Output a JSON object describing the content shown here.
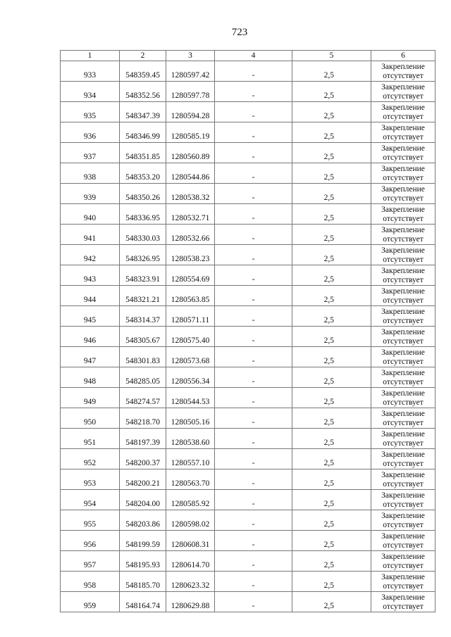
{
  "page_number": "723",
  "table": {
    "headers": [
      "1",
      "2",
      "3",
      "4",
      "5",
      "6"
    ],
    "rows": [
      [
        "933",
        "548359.45",
        "1280597.42",
        "-",
        "2,5",
        "Закрепление",
        "отсутствует"
      ],
      [
        "934",
        "548352.56",
        "1280597.78",
        "-",
        "2,5",
        "Закрепление",
        "отсутствует"
      ],
      [
        "935",
        "548347.39",
        "1280594.28",
        "-",
        "2,5",
        "Закрепление",
        "отсутствует"
      ],
      [
        "936",
        "548346.99",
        "1280585.19",
        "-",
        "2,5",
        "Закрепление",
        "отсутствует"
      ],
      [
        "937",
        "548351.85",
        "1280560.89",
        "-",
        "2,5",
        "Закрепление",
        "отсутствует"
      ],
      [
        "938",
        "548353.20",
        "1280544.86",
        "-",
        "2,5",
        "Закрепление",
        "отсутствует"
      ],
      [
        "939",
        "548350.26",
        "1280538.32",
        "-",
        "2,5",
        "Закрепление",
        "отсутствует"
      ],
      [
        "940",
        "548336.95",
        "1280532.71",
        "-",
        "2,5",
        "Закрепление",
        "отсутствует"
      ],
      [
        "941",
        "548330.03",
        "1280532.66",
        "-",
        "2,5",
        "Закрепление",
        "отсутствует"
      ],
      [
        "942",
        "548326.95",
        "1280538.23",
        "-",
        "2,5",
        "Закрепление",
        "отсутствует"
      ],
      [
        "943",
        "548323.91",
        "1280554.69",
        "-",
        "2,5",
        "Закрепление",
        "отсутствует"
      ],
      [
        "944",
        "548321.21",
        "1280563.85",
        "-",
        "2,5",
        "Закрепление",
        "отсутствует"
      ],
      [
        "945",
        "548314.37",
        "1280571.11",
        "-",
        "2,5",
        "Закрепление",
        "отсутствует"
      ],
      [
        "946",
        "548305.67",
        "1280575.40",
        "-",
        "2,5",
        "Закрепление",
        "отсутствует"
      ],
      [
        "947",
        "548301.83",
        "1280573.68",
        "-",
        "2,5",
        "Закрепление",
        "отсутствует"
      ],
      [
        "948",
        "548285.05",
        "1280556.34",
        "-",
        "2,5",
        "Закрепление",
        "отсутствует"
      ],
      [
        "949",
        "548274.57",
        "1280544.53",
        "-",
        "2,5",
        "Закрепление",
        "отсутствует"
      ],
      [
        "950",
        "548218.70",
        "1280505.16",
        "-",
        "2,5",
        "Закрепление",
        "отсутствует"
      ],
      [
        "951",
        "548197.39",
        "1280538.60",
        "-",
        "2,5",
        "Закрепление",
        "отсутствует"
      ],
      [
        "952",
        "548200.37",
        "1280557.10",
        "-",
        "2,5",
        "Закрепление",
        "отсутствует"
      ],
      [
        "953",
        "548200.21",
        "1280563.70",
        "-",
        "2,5",
        "Закрепление",
        "отсутствует"
      ],
      [
        "954",
        "548204.00",
        "1280585.92",
        "-",
        "2,5",
        "Закрепление",
        "отсутствует"
      ],
      [
        "955",
        "548203.86",
        "1280598.02",
        "-",
        "2,5",
        "Закрепление",
        "отсутствует"
      ],
      [
        "956",
        "548199.59",
        "1280608.31",
        "-",
        "2,5",
        "Закрепление",
        "отсутствует"
      ],
      [
        "957",
        "548195.93",
        "1280614.70",
        "-",
        "2,5",
        "Закрепление",
        "отсутствует"
      ],
      [
        "958",
        "548185.70",
        "1280623.32",
        "-",
        "2,5",
        "Закрепление",
        "отсутствует"
      ],
      [
        "959",
        "548164.74",
        "1280629.88",
        "-",
        "2,5",
        "Закрепление",
        "отсутствует"
      ]
    ]
  }
}
